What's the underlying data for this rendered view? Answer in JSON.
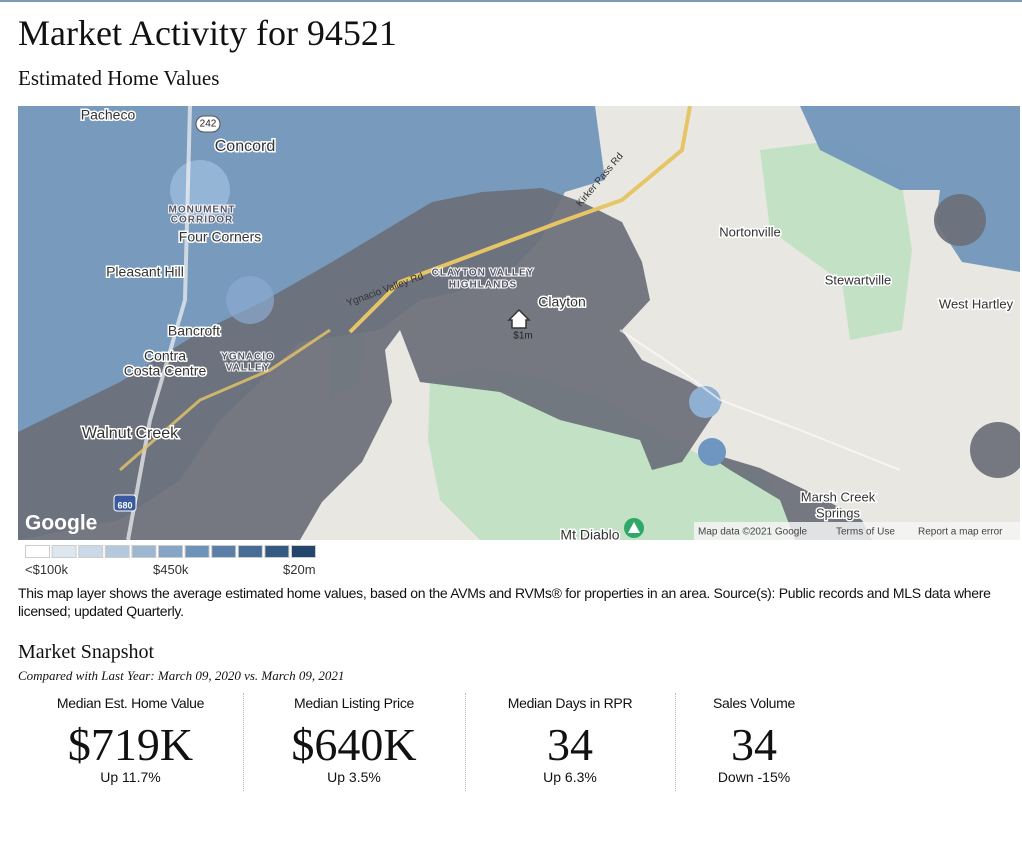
{
  "header": {
    "title": "Market Activity for 94521",
    "subtitle": "Estimated Home Values"
  },
  "map": {
    "labels": [
      "Pacheco",
      "242",
      "Concord",
      "MONUMENT",
      "CORRIDOR",
      "Four Corners",
      "Pleasant Hill",
      "Ygnacio Valley Rd",
      "CLAYTON VALLEY",
      "HIGHLANDS",
      "Kirker Pass Rd",
      "Clayton",
      "$1m",
      "Nortonville",
      "Stewartville",
      "West Hartley",
      "Bancroft",
      "Contra",
      "Costa Centre",
      "YGNACIO",
      "VALLEY",
      "Walnut Creek",
      "680",
      "Marsh Creek",
      "Springs",
      "Mt Diablo"
    ],
    "logo": "Google",
    "attribution": [
      "Map data ©2021 Google",
      "Terms of Use",
      "Report a map error"
    ]
  },
  "legend": {
    "colors": [
      "#ffffff",
      "#dde7f0",
      "#cad9e7",
      "#b4c9dd",
      "#9db7d1",
      "#86a5c6",
      "#6f92b8",
      "#5a7fa8",
      "#476d96",
      "#345a83",
      "#24466d"
    ],
    "labels": [
      "<$100k",
      "$450k",
      "$20m"
    ]
  },
  "description": "This map layer shows the average estimated home values, based on the AVMs and RVMs® for properties in an area. Source(s): Public records and MLS data where licensed; updated Quarterly.",
  "snapshot": {
    "title": "Market Snapshot",
    "compared": "Compared with Last Year: March 09, 2020 vs. March 09, 2021",
    "stats": [
      {
        "label": "Median Est. Home Value",
        "value": "$719K",
        "change": "Up 11.7%"
      },
      {
        "label": "Median Listing Price",
        "value": "$640K",
        "change": "Up 3.5%"
      },
      {
        "label": "Median Days in RPR",
        "value": "34",
        "change": "Up 6.3%"
      },
      {
        "label": "Sales Volume",
        "value": "34",
        "change": "Down -15%"
      }
    ]
  }
}
